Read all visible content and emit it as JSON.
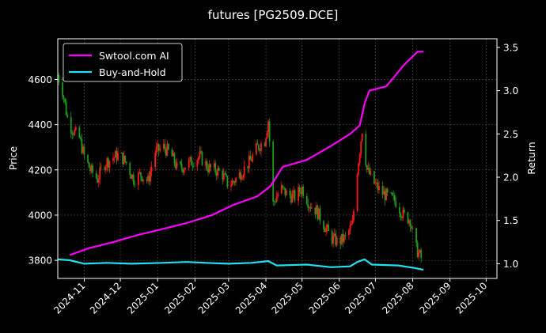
{
  "chart_data": {
    "type": "line",
    "title": "futures [PG2509.DCE]",
    "ylabel_left": "Price",
    "ylabel_right": "Return",
    "xlabel": "",
    "grid": true,
    "legend_position": "top-left",
    "x_range": [
      "2024-10-10",
      "2025-10-10"
    ],
    "y_left_range": [
      3720,
      4780
    ],
    "y_right_range": [
      0.83,
      3.6
    ],
    "x_ticks": [
      "2024-11",
      "2024-12",
      "2025-01",
      "2025-02",
      "2025-03",
      "2025-04",
      "2025-05",
      "2025-06",
      "2025-07",
      "2025-08",
      "2025-09",
      "2025-10"
    ],
    "y_left_ticks": [
      3800,
      4000,
      4200,
      4400,
      4600
    ],
    "y_right_ticks": [
      1.0,
      1.5,
      2.0,
      2.5,
      3.0,
      3.5
    ],
    "colors": {
      "up": "#ff1a1a",
      "down": "#1f9a1f",
      "ai": "#ff00ff",
      "hold": "#22e0f0",
      "grid": "#555555"
    },
    "candlestick_close_approx": [
      [
        "2024-10-10",
        4620
      ],
      [
        "2024-10-14",
        4550
      ],
      [
        "2024-10-18",
        4430
      ],
      [
        "2024-10-22",
        4380
      ],
      [
        "2024-10-28",
        4340
      ],
      [
        "2024-11-01",
        4260
      ],
      [
        "2024-11-06",
        4200
      ],
      [
        "2024-11-12",
        4160
      ],
      [
        "2024-11-18",
        4230
      ],
      [
        "2024-11-24",
        4250
      ],
      [
        "2024-11-30",
        4270
      ],
      [
        "2024-12-06",
        4230
      ],
      [
        "2024-12-12",
        4160
      ],
      [
        "2024-12-18",
        4180
      ],
      [
        "2024-12-24",
        4150
      ],
      [
        "2024-12-30",
        4280
      ],
      [
        "2025-01-06",
        4300
      ],
      [
        "2025-01-12",
        4270
      ],
      [
        "2025-01-18",
        4200
      ],
      [
        "2025-01-24",
        4220
      ],
      [
        "2025-01-30",
        4240
      ],
      [
        "2025-02-05",
        4260
      ],
      [
        "2025-02-12",
        4210
      ],
      [
        "2025-02-18",
        4200
      ],
      [
        "2025-02-24",
        4180
      ],
      [
        "2025-03-01",
        4130
      ],
      [
        "2025-03-07",
        4160
      ],
      [
        "2025-03-13",
        4200
      ],
      [
        "2025-03-19",
        4240
      ],
      [
        "2025-03-25",
        4300
      ],
      [
        "2025-03-31",
        4330
      ],
      [
        "2025-04-03",
        4420
      ],
      [
        "2025-04-07",
        4050
      ],
      [
        "2025-04-13",
        4120
      ],
      [
        "2025-04-19",
        4090
      ],
      [
        "2025-04-25",
        4080
      ],
      [
        "2025-05-01",
        4120
      ],
      [
        "2025-05-07",
        4050
      ],
      [
        "2025-05-13",
        4020
      ],
      [
        "2025-05-19",
        3960
      ],
      [
        "2025-05-25",
        3900
      ],
      [
        "2025-05-31",
        3880
      ],
      [
        "2025-06-06",
        3900
      ],
      [
        "2025-06-12",
        3960
      ],
      [
        "2025-06-16",
        4200
      ],
      [
        "2025-06-20",
        4380
      ],
      [
        "2025-06-24",
        4200
      ],
      [
        "2025-06-30",
        4140
      ],
      [
        "2025-07-06",
        4100
      ],
      [
        "2025-07-12",
        4080
      ],
      [
        "2025-07-18",
        4060
      ],
      [
        "2025-07-24",
        4000
      ],
      [
        "2025-07-30",
        3980
      ],
      [
        "2025-08-03",
        3860
      ],
      [
        "2025-08-07",
        3820
      ],
      [
        "2025-08-10",
        3790
      ]
    ],
    "series": [
      {
        "name": "Swtool.com AI",
        "axis": "right",
        "points": [
          [
            "2024-10-20",
            1.1
          ],
          [
            "2024-11-05",
            1.18
          ],
          [
            "2024-11-25",
            1.25
          ],
          [
            "2024-12-15",
            1.33
          ],
          [
            "2025-01-05",
            1.4
          ],
          [
            "2025-01-25",
            1.47
          ],
          [
            "2025-02-15",
            1.56
          ],
          [
            "2025-03-05",
            1.68
          ],
          [
            "2025-03-25",
            1.78
          ],
          [
            "2025-04-05",
            1.9
          ],
          [
            "2025-04-15",
            2.12
          ],
          [
            "2025-05-05",
            2.2
          ],
          [
            "2025-05-25",
            2.36
          ],
          [
            "2025-06-10",
            2.5
          ],
          [
            "2025-06-18",
            2.6
          ],
          [
            "2025-06-22",
            2.85
          ],
          [
            "2025-06-26",
            3.0
          ],
          [
            "2025-07-10",
            3.05
          ],
          [
            "2025-07-25",
            3.3
          ],
          [
            "2025-08-05",
            3.45
          ],
          [
            "2025-08-10",
            3.45
          ]
        ]
      },
      {
        "name": "Buy-and-Hold",
        "axis": "right",
        "points": [
          [
            "2024-10-10",
            1.05
          ],
          [
            "2024-10-20",
            1.04
          ],
          [
            "2024-11-01",
            1.0
          ],
          [
            "2024-11-20",
            1.01
          ],
          [
            "2024-12-10",
            1.0
          ],
          [
            "2025-01-05",
            1.01
          ],
          [
            "2025-01-25",
            1.02
          ],
          [
            "2025-02-10",
            1.01
          ],
          [
            "2025-03-01",
            1.0
          ],
          [
            "2025-03-20",
            1.01
          ],
          [
            "2025-04-03",
            1.03
          ],
          [
            "2025-04-10",
            0.98
          ],
          [
            "2025-05-05",
            0.99
          ],
          [
            "2025-05-25",
            0.96
          ],
          [
            "2025-06-10",
            0.97
          ],
          [
            "2025-06-16",
            1.02
          ],
          [
            "2025-06-22",
            1.05
          ],
          [
            "2025-06-28",
            0.99
          ],
          [
            "2025-07-20",
            0.98
          ],
          [
            "2025-08-03",
            0.95
          ],
          [
            "2025-08-10",
            0.93
          ]
        ]
      }
    ]
  }
}
